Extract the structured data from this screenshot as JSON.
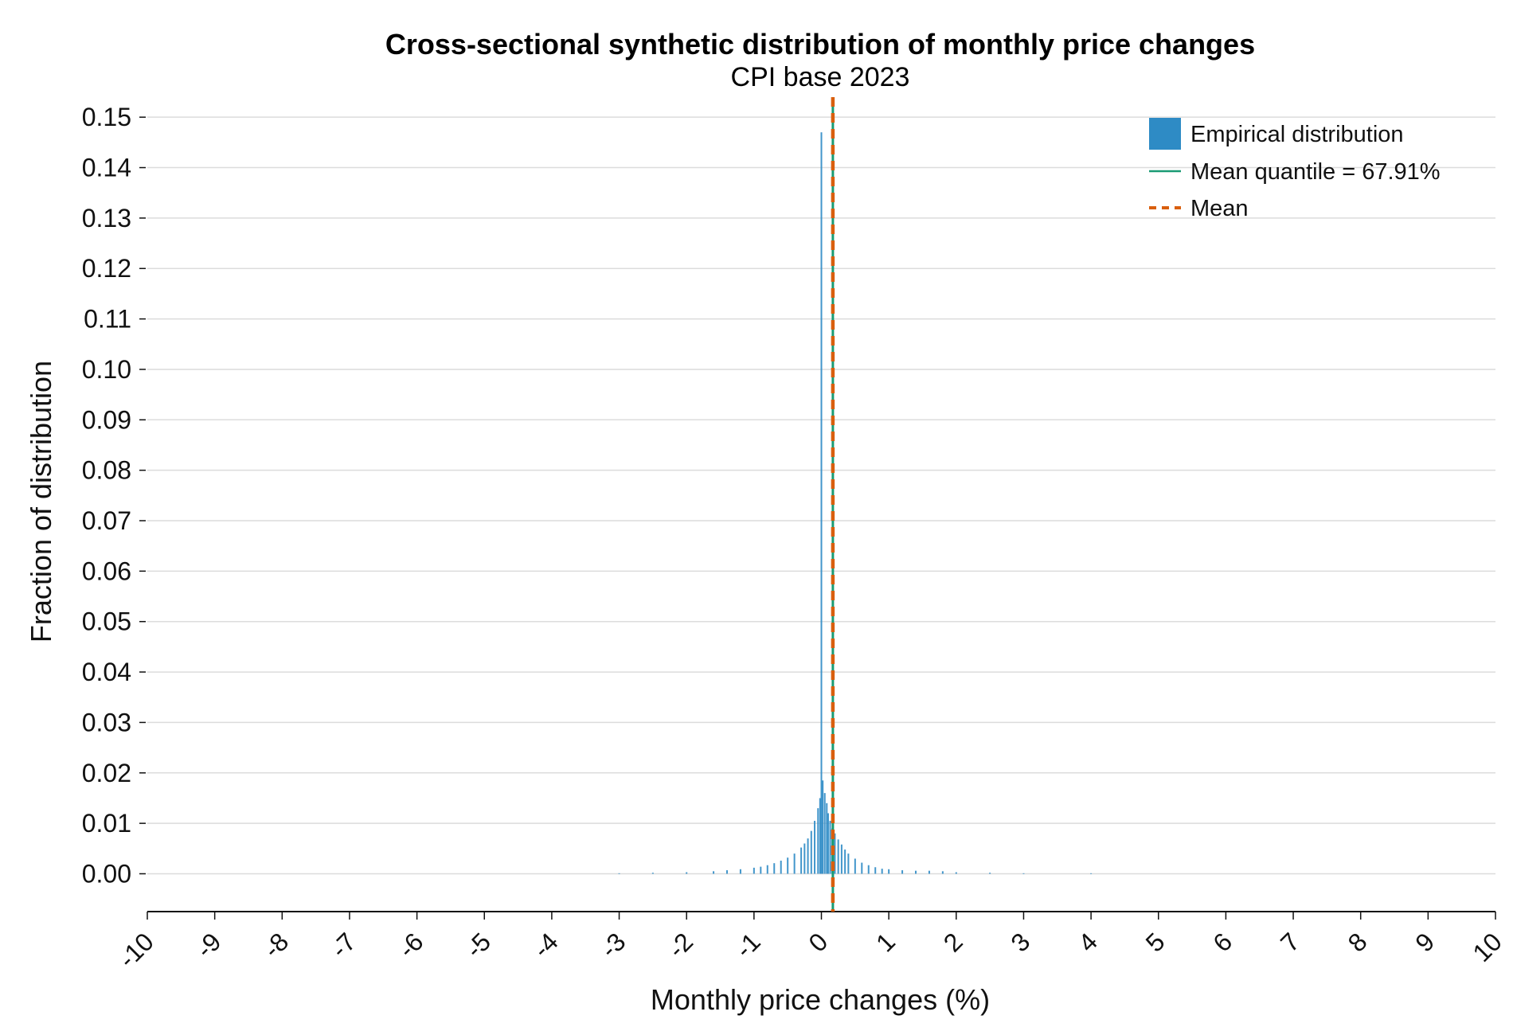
{
  "chart_data": {
    "type": "bar",
    "title": "Cross-sectional synthetic distribution of monthly price changes",
    "subtitle": "CPI base 2023",
    "xlabel": "Monthly price changes (%)",
    "ylabel": "Fraction of distribution",
    "xlim": [
      -10,
      10
    ],
    "ylim": [
      -0.0075,
      0.1535
    ],
    "x_ticks": [
      "-10",
      "-9",
      "-8",
      "-7",
      "-6",
      "-5",
      "-4",
      "-3",
      "-2",
      "-1",
      "0",
      "1",
      "2",
      "3",
      "4",
      "5",
      "6",
      "7",
      "8",
      "9",
      "10"
    ],
    "y_ticks": [
      "0.00",
      "0.01",
      "0.02",
      "0.03",
      "0.04",
      "0.05",
      "0.06",
      "0.07",
      "0.08",
      "0.09",
      "0.10",
      "0.11",
      "0.12",
      "0.13",
      "0.14",
      "0.15"
    ],
    "grid": "horizontal",
    "legend_position": "top-right",
    "series": [
      {
        "name": "Empirical distribution",
        "kind": "histogram",
        "color": "#2e8bc5",
        "bins": [
          {
            "x": -3.0,
            "y": 0.0001
          },
          {
            "x": -2.5,
            "y": 0.0002
          },
          {
            "x": -2.0,
            "y": 0.0003
          },
          {
            "x": -1.6,
            "y": 0.0005
          },
          {
            "x": -1.4,
            "y": 0.0007
          },
          {
            "x": -1.2,
            "y": 0.0009
          },
          {
            "x": -1.0,
            "y": 0.0012
          },
          {
            "x": -0.9,
            "y": 0.0014
          },
          {
            "x": -0.8,
            "y": 0.0017
          },
          {
            "x": -0.7,
            "y": 0.0021
          },
          {
            "x": -0.6,
            "y": 0.0026
          },
          {
            "x": -0.5,
            "y": 0.0032
          },
          {
            "x": -0.4,
            "y": 0.004
          },
          {
            "x": -0.3,
            "y": 0.0052
          },
          {
            "x": -0.25,
            "y": 0.006
          },
          {
            "x": -0.2,
            "y": 0.007
          },
          {
            "x": -0.15,
            "y": 0.0085
          },
          {
            "x": -0.1,
            "y": 0.0105
          },
          {
            "x": -0.05,
            "y": 0.013
          },
          {
            "x": -0.02,
            "y": 0.015
          },
          {
            "x": 0.0,
            "y": 0.147
          },
          {
            "x": 0.02,
            "y": 0.0185
          },
          {
            "x": 0.05,
            "y": 0.016
          },
          {
            "x": 0.08,
            "y": 0.014
          },
          {
            "x": 0.1,
            "y": 0.012
          },
          {
            "x": 0.13,
            "y": 0.0105
          },
          {
            "x": 0.16,
            "y": 0.009
          },
          {
            "x": 0.2,
            "y": 0.008
          },
          {
            "x": 0.25,
            "y": 0.0068
          },
          {
            "x": 0.3,
            "y": 0.0058
          },
          {
            "x": 0.35,
            "y": 0.0048
          },
          {
            "x": 0.4,
            "y": 0.004
          },
          {
            "x": 0.5,
            "y": 0.003
          },
          {
            "x": 0.6,
            "y": 0.0022
          },
          {
            "x": 0.7,
            "y": 0.0017
          },
          {
            "x": 0.8,
            "y": 0.0013
          },
          {
            "x": 0.9,
            "y": 0.001
          },
          {
            "x": 1.0,
            "y": 0.0009
          },
          {
            "x": 1.2,
            "y": 0.0007
          },
          {
            "x": 1.4,
            "y": 0.0006
          },
          {
            "x": 1.6,
            "y": 0.0006
          },
          {
            "x": 1.8,
            "y": 0.0005
          },
          {
            "x": 2.0,
            "y": 0.0003
          },
          {
            "x": 2.5,
            "y": 0.0002
          },
          {
            "x": 3.0,
            "y": 0.0001
          },
          {
            "x": 4.0,
            "y": 0.0001
          }
        ]
      },
      {
        "name": "Mean quantile = 67.91%",
        "kind": "vertical_line",
        "color": "#1a9b74",
        "x": 0.17
      },
      {
        "name": "Mean",
        "kind": "vertical_line_dashed",
        "color": "#d95f0e",
        "x": 0.17
      }
    ]
  }
}
